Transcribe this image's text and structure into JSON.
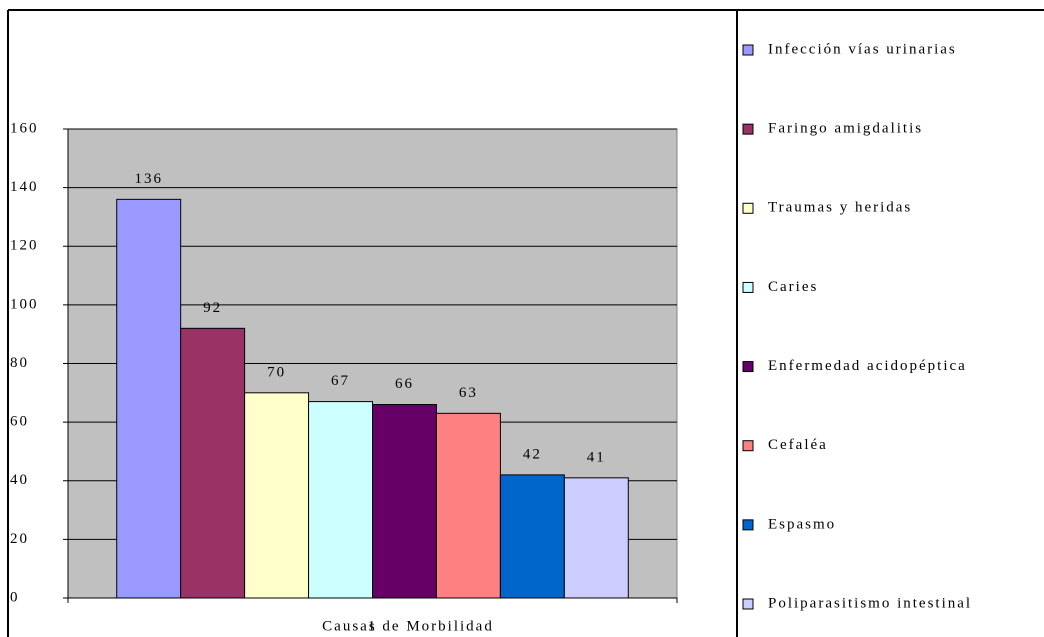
{
  "chart_data": {
    "type": "bar",
    "categories": [
      "1"
    ],
    "x_label": "Causas de Morbilidad",
    "series": [
      {
        "name": "Infección vías urinarias",
        "color": "#9999ff",
        "values": [
          136
        ]
      },
      {
        "name": "Faringo amigdalitis",
        "color": "#993366",
        "values": [
          92
        ]
      },
      {
        "name": "Traumas y heridas",
        "color": "#ffffcc",
        "values": [
          70
        ]
      },
      {
        "name": "Caries",
        "color": "#ccffff",
        "values": [
          67
        ]
      },
      {
        "name": "Enfermedad acidopéptica",
        "color": "#660066",
        "values": [
          66
        ]
      },
      {
        "name": "Cefaléa",
        "color": "#ff8080",
        "values": [
          63
        ]
      },
      {
        "name": "Espasmo",
        "color": "#0066cc",
        "values": [
          42
        ]
      },
      {
        "name": "Poliparasitismo intestinal",
        "color": "#ccccff",
        "values": [
          41
        ]
      }
    ],
    "ylim": [
      0,
      160
    ],
    "yticks": [
      0,
      20,
      40,
      60,
      80,
      100,
      120,
      140,
      160
    ],
    "grid": true,
    "plot_background": "#c0c0c0",
    "legend": "right"
  }
}
